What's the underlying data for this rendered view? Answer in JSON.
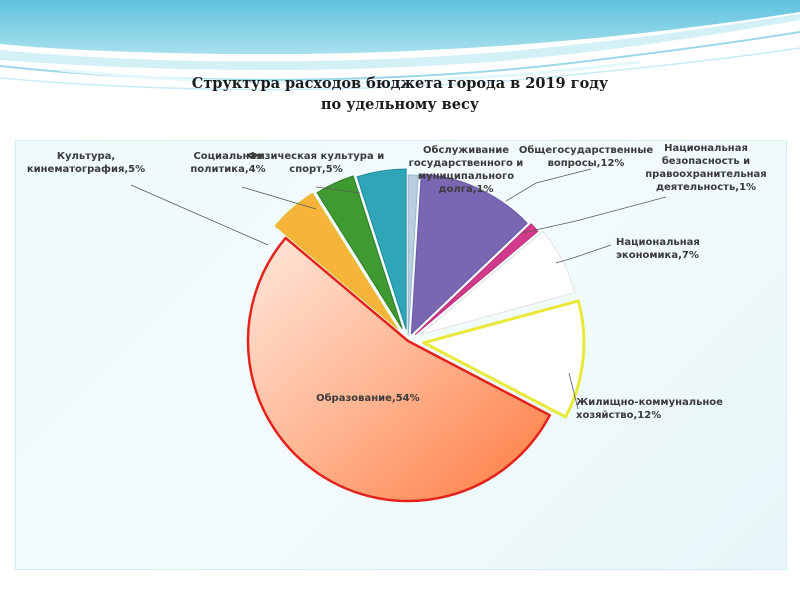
{
  "title_lines": [
    "Структура расходов бюджета города в 2019 году",
    "по удельному весу"
  ],
  "chart_data": {
    "type": "pie",
    "title": "Структура расходов бюджета города в 2019 году по удельному весу",
    "legend": "none",
    "slices": [
      {
        "name": "Обслуживание государственного и муниципального долга",
        "value": 1,
        "label_lines": [
          "Обслуживание",
          "государственного и",
          "муниципального",
          "долга,1%"
        ],
        "color": "#b9cfe0"
      },
      {
        "name": "Общегосударственные вопросы",
        "value": 12,
        "label_lines": [
          "Общегосударственные",
          "вопросы,12%"
        ],
        "color": "#7a67b3"
      },
      {
        "name": "Национальная безопасность и правоохранительная деятельность",
        "value": 1,
        "label_lines": [
          "Национальная",
          "безопасность и",
          "правоохранительная",
          "деятельность,1%"
        ],
        "color": "#d23b8c"
      },
      {
        "name": "Национальная экономика",
        "value": 7,
        "label_lines": [
          "Национальная",
          "экономика,7%"
        ],
        "color": "#ffffff"
      },
      {
        "name": "Жилищно-коммунальное хозяйство",
        "value": 12,
        "label_lines": [
          "Жилищно-коммунальное",
          "хозяйство,12%"
        ],
        "color": "#ffffff"
      },
      {
        "name": "Образование",
        "value": 54,
        "label_lines": [
          "Образование,54%"
        ],
        "color": "#ff8a55"
      },
      {
        "name": "Культура, кинематография",
        "value": 5,
        "label_lines": [
          "Культура,",
          "кинематография,5%"
        ],
        "color": "#f6b43a"
      },
      {
        "name": "Социальная политика",
        "value": 4,
        "label_lines": [
          "Социальная",
          "политика,4%"
        ],
        "color": "#3f9a32"
      },
      {
        "name": "Физическая культура и спорт",
        "value": 5,
        "label_lines": [
          "Физическая культура и",
          "спорт,5%"
        ],
        "color": "#2fa6b8"
      }
    ]
  }
}
